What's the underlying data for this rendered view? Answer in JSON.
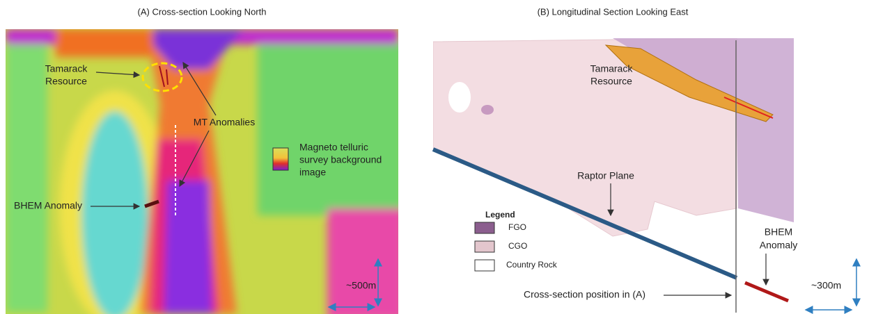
{
  "panel_a": {
    "title": "(A) Cross-section Looking North",
    "tamarack_resource": [
      "Tamarack",
      "Resource"
    ],
    "mt_anomalies": "MT Anomalies",
    "survey_label": [
      "Magneto telluric",
      "survey background",
      "image"
    ],
    "bhem_anomaly": "BHEM Anomaly",
    "scale": "~500m"
  },
  "panel_b": {
    "title": "(B) Longitudinal Section Looking East",
    "tamarack_resource": [
      "Tamarack",
      "Resource"
    ],
    "raptor_plane": "Raptor Plane",
    "legend": {
      "title": "Legend",
      "items": [
        "FGO",
        "CGO",
        "Country Rock"
      ]
    },
    "bhem_anomaly": [
      "BHEM",
      "Anomaly"
    ],
    "cross_section": "Cross-section position in (A)",
    "scale": "~300m"
  }
}
